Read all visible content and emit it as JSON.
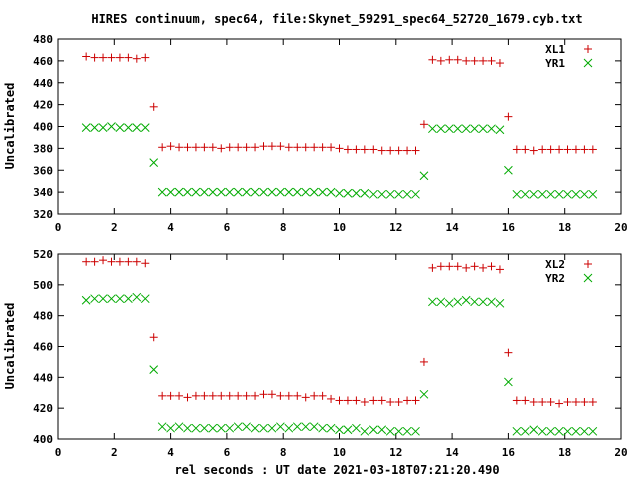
{
  "title": "HIRES continuum, spec64, file:Skynet_59291_spec64_52720_1679.cyb.txt",
  "xlabel": "rel seconds : UT date 2021-03-18T07:21:20.490",
  "colors": {
    "plus_series": "#cc0000",
    "cross_series": "#00aa00",
    "axes": "#000000",
    "background": "#ffffff"
  },
  "chart_data": [
    {
      "type": "scatter",
      "ylabel": "Uncalibrated",
      "xlim": [
        0,
        20
      ],
      "ylim": [
        320,
        480
      ],
      "xticks": [
        0,
        2,
        4,
        6,
        8,
        10,
        12,
        14,
        16,
        18,
        20
      ],
      "yticks": [
        320,
        340,
        360,
        380,
        400,
        420,
        440,
        460,
        480
      ],
      "legend_position": "top-right",
      "grid": false,
      "series": [
        {
          "name": "XL1",
          "marker": "plus",
          "color": "#cc0000",
          "x": [
            1.0,
            1.3,
            1.6,
            1.9,
            2.2,
            2.5,
            2.8,
            3.1,
            3.4,
            3.7,
            4.0,
            4.3,
            4.6,
            4.9,
            5.2,
            5.5,
            5.8,
            6.1,
            6.4,
            6.7,
            7.0,
            7.3,
            7.6,
            7.9,
            8.2,
            8.5,
            8.8,
            9.1,
            9.4,
            9.7,
            10.0,
            10.3,
            10.6,
            10.9,
            11.2,
            11.5,
            11.8,
            12.1,
            12.4,
            12.7,
            13.0,
            13.3,
            13.6,
            13.9,
            14.2,
            14.5,
            14.8,
            15.1,
            15.4,
            15.7,
            16.0,
            16.3,
            16.6,
            16.9,
            17.2,
            17.5,
            17.8,
            18.1,
            18.4,
            18.7,
            19.0
          ],
          "y": [
            464,
            463,
            463,
            463,
            463,
            463,
            462,
            463,
            418,
            381,
            382,
            381,
            381,
            381,
            381,
            381,
            380,
            381,
            381,
            381,
            381,
            382,
            382,
            382,
            381,
            381,
            381,
            381,
            381,
            381,
            380,
            379,
            379,
            379,
            379,
            378,
            378,
            378,
            378,
            378,
            402,
            461,
            460,
            461,
            461,
            460,
            460,
            460,
            460,
            458,
            409,
            379,
            379,
            378,
            379,
            379,
            379,
            379,
            379,
            379,
            379
          ]
        },
        {
          "name": "YR1",
          "marker": "cross",
          "color": "#00aa00",
          "x": [
            1.0,
            1.3,
            1.6,
            1.9,
            2.2,
            2.5,
            2.8,
            3.1,
            3.4,
            3.7,
            4.0,
            4.3,
            4.6,
            4.9,
            5.2,
            5.5,
            5.8,
            6.1,
            6.4,
            6.7,
            7.0,
            7.3,
            7.6,
            7.9,
            8.2,
            8.5,
            8.8,
            9.1,
            9.4,
            9.7,
            10.0,
            10.3,
            10.6,
            10.9,
            11.2,
            11.5,
            11.8,
            12.1,
            12.4,
            12.7,
            13.0,
            13.3,
            13.6,
            13.9,
            14.2,
            14.5,
            14.8,
            15.1,
            15.4,
            15.7,
            16.0,
            16.3,
            16.6,
            16.9,
            17.2,
            17.5,
            17.8,
            18.1,
            18.4,
            18.7,
            19.0
          ],
          "y": [
            399,
            399,
            399,
            400,
            399,
            399,
            399,
            399,
            367,
            340,
            340,
            340,
            340,
            340,
            340,
            340,
            340,
            340,
            340,
            340,
            340,
            340,
            340,
            340,
            340,
            340,
            340,
            340,
            340,
            340,
            339,
            339,
            339,
            339,
            338,
            338,
            338,
            338,
            338,
            338,
            355,
            398,
            398,
            398,
            398,
            398,
            398,
            398,
            398,
            397,
            360,
            338,
            338,
            338,
            338,
            338,
            338,
            338,
            338,
            338,
            338
          ]
        }
      ]
    },
    {
      "type": "scatter",
      "ylabel": "Uncalibrated",
      "xlabel": "rel seconds : UT date 2021-03-18T07:21:20.490",
      "xlim": [
        0,
        20
      ],
      "ylim": [
        400,
        520
      ],
      "xticks": [
        0,
        2,
        4,
        6,
        8,
        10,
        12,
        14,
        16,
        18,
        20
      ],
      "yticks": [
        400,
        420,
        440,
        460,
        480,
        500,
        520
      ],
      "legend_position": "top-right",
      "grid": false,
      "series": [
        {
          "name": "XL2",
          "marker": "plus",
          "color": "#cc0000",
          "x": [
            1.0,
            1.3,
            1.6,
            1.9,
            2.2,
            2.5,
            2.8,
            3.1,
            3.4,
            3.7,
            4.0,
            4.3,
            4.6,
            4.9,
            5.2,
            5.5,
            5.8,
            6.1,
            6.4,
            6.7,
            7.0,
            7.3,
            7.6,
            7.9,
            8.2,
            8.5,
            8.8,
            9.1,
            9.4,
            9.7,
            10.0,
            10.3,
            10.6,
            10.9,
            11.2,
            11.5,
            11.8,
            12.1,
            12.4,
            12.7,
            13.0,
            13.3,
            13.6,
            13.9,
            14.2,
            14.5,
            14.8,
            15.1,
            15.4,
            15.7,
            16.0,
            16.3,
            16.6,
            16.9,
            17.2,
            17.5,
            17.8,
            18.1,
            18.4,
            18.7,
            19.0
          ],
          "y": [
            515,
            515,
            516,
            515,
            515,
            515,
            515,
            514,
            466,
            428,
            428,
            428,
            427,
            428,
            428,
            428,
            428,
            428,
            428,
            428,
            428,
            429,
            429,
            428,
            428,
            428,
            427,
            428,
            428,
            426,
            425,
            425,
            425,
            424,
            425,
            425,
            424,
            424,
            425,
            425,
            450,
            511,
            512,
            512,
            512,
            511,
            512,
            511,
            512,
            510,
            456,
            425,
            425,
            424,
            424,
            424,
            423,
            424,
            424,
            424,
            424
          ]
        },
        {
          "name": "YR2",
          "marker": "cross",
          "color": "#00aa00",
          "x": [
            1.0,
            1.3,
            1.6,
            1.9,
            2.2,
            2.5,
            2.8,
            3.1,
            3.4,
            3.7,
            4.0,
            4.3,
            4.6,
            4.9,
            5.2,
            5.5,
            5.8,
            6.1,
            6.4,
            6.7,
            7.0,
            7.3,
            7.6,
            7.9,
            8.2,
            8.5,
            8.8,
            9.1,
            9.4,
            9.7,
            10.0,
            10.3,
            10.6,
            10.9,
            11.2,
            11.5,
            11.8,
            12.1,
            12.4,
            12.7,
            13.0,
            13.3,
            13.6,
            13.9,
            14.2,
            14.5,
            14.8,
            15.1,
            15.4,
            15.7,
            16.0,
            16.3,
            16.6,
            16.9,
            17.2,
            17.5,
            17.8,
            18.1,
            18.4,
            18.7,
            19.0
          ],
          "y": [
            490,
            491,
            491,
            491,
            491,
            491,
            492,
            491,
            445,
            408,
            407,
            408,
            407,
            407,
            407,
            407,
            407,
            407,
            408,
            408,
            407,
            407,
            407,
            408,
            407,
            408,
            408,
            408,
            407,
            407,
            406,
            406,
            407,
            405,
            406,
            406,
            405,
            405,
            405,
            405,
            429,
            489,
            489,
            488,
            489,
            490,
            489,
            489,
            489,
            488,
            437,
            405,
            405,
            406,
            405,
            405,
            405,
            405,
            405,
            405,
            405
          ]
        }
      ]
    }
  ]
}
